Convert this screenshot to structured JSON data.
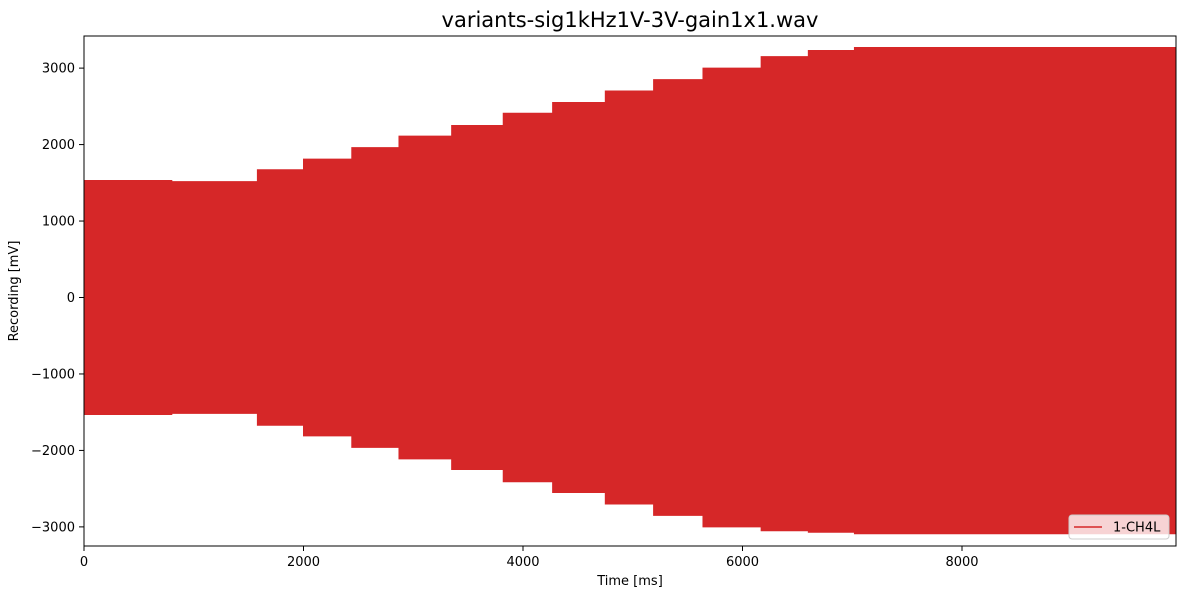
{
  "chart_data": {
    "type": "area",
    "title": "variants-sig1kHz1V-3V-gain1x1.wav",
    "xlabel": "Time [ms]",
    "ylabel": "Recording [mV]",
    "xlim": [
      0,
      9950
    ],
    "ylim": [
      -3250,
      3420
    ],
    "xticks": [
      0,
      2000,
      4000,
      6000,
      8000
    ],
    "xtick_labels": [
      "0",
      "2000",
      "4000",
      "6000",
      "8000"
    ],
    "yticks": [
      -3000,
      -2000,
      -1000,
      0,
      1000,
      2000,
      3000
    ],
    "ytick_labels": [
      "−3000",
      "−2000",
      "−1000",
      "0",
      "1000",
      "2000",
      "3000"
    ],
    "grid": false,
    "legend_position": "lower-right",
    "series": [
      {
        "name": "1-CH4L",
        "color": "#d62728",
        "envelope_steps": [
          {
            "x_start": 0,
            "x_end": 800,
            "upper": 1530,
            "lower": -1530
          },
          {
            "x_start": 800,
            "x_end": 1580,
            "upper": 1515,
            "lower": -1515
          },
          {
            "x_start": 1580,
            "x_end": 2000,
            "upper": 1670,
            "lower": -1670
          },
          {
            "x_start": 2000,
            "x_end": 2440,
            "upper": 1810,
            "lower": -1810
          },
          {
            "x_start": 2440,
            "x_end": 2870,
            "upper": 1960,
            "lower": -1960
          },
          {
            "x_start": 2870,
            "x_end": 3350,
            "upper": 2110,
            "lower": -2110
          },
          {
            "x_start": 3350,
            "x_end": 3820,
            "upper": 2250,
            "lower": -2250
          },
          {
            "x_start": 3820,
            "x_end": 4270,
            "upper": 2410,
            "lower": -2410
          },
          {
            "x_start": 4270,
            "x_end": 4750,
            "upper": 2550,
            "lower": -2550
          },
          {
            "x_start": 4750,
            "x_end": 5190,
            "upper": 2700,
            "lower": -2700
          },
          {
            "x_start": 5190,
            "x_end": 5640,
            "upper": 2850,
            "lower": -2850
          },
          {
            "x_start": 5640,
            "x_end": 6170,
            "upper": 3000,
            "lower": -3000
          },
          {
            "x_start": 6170,
            "x_end": 6600,
            "upper": 3150,
            "lower": -3050
          },
          {
            "x_start": 6600,
            "x_end": 7020,
            "upper": 3230,
            "lower": -3070
          },
          {
            "x_start": 7020,
            "x_end": 9950,
            "upper": 3270,
            "lower": -3090
          }
        ]
      }
    ]
  }
}
